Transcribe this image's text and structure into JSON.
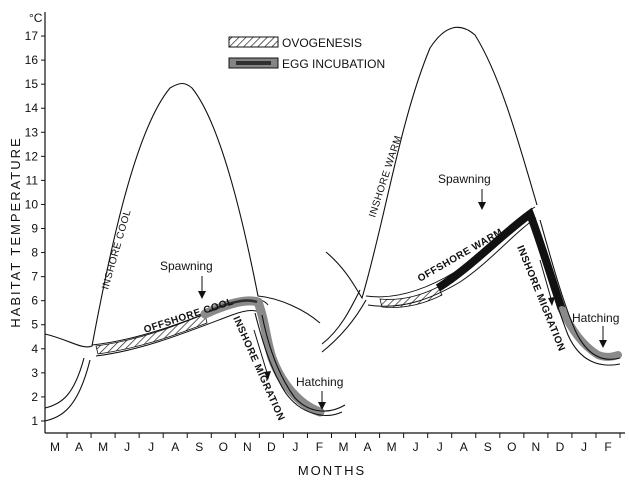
{
  "chart_data": {
    "type": "line",
    "title": "",
    "xlabel": "MONTHS",
    "ylabel": "HABITAT TEMPERATURE",
    "y_unit": "°C",
    "ylim": [
      0.5,
      18
    ],
    "y_ticks": [
      1,
      2,
      3,
      4,
      5,
      6,
      7,
      8,
      9,
      10,
      11,
      12,
      13,
      14,
      15,
      16,
      17
    ],
    "x_ticks": [
      "M",
      "A",
      "M",
      "J",
      "J",
      "A",
      "S",
      "O",
      "N",
      "D",
      "J",
      "F",
      "M",
      "A",
      "M",
      "J",
      "J",
      "A",
      "S",
      "O",
      "N",
      "D",
      "J",
      "F"
    ],
    "legend": [
      {
        "label": "OVOGENESIS",
        "style": "hatched"
      },
      {
        "label": "EGG INCUBATION",
        "style": "gray-filled"
      }
    ],
    "legend_position": "top-center",
    "series": [
      {
        "name": "INSHORE COOL",
        "x": [
          0,
          1,
          2,
          3,
          4,
          5,
          6,
          7,
          8
        ],
        "y": [
          4.6,
          4.0,
          7.5,
          12.5,
          14.9,
          14.2,
          11.0,
          6.5,
          6.0
        ]
      },
      {
        "name": "OFFSHORE COOL",
        "x": [
          1,
          2,
          3,
          4,
          5,
          6,
          7,
          8,
          9,
          10
        ],
        "y": [
          3.8,
          3.9,
          4.2,
          4.7,
          5.3,
          5.8,
          6.0,
          5.8,
          5.4,
          4.8
        ]
      },
      {
        "name": "INSHORE MIGRATION",
        "x": [
          8.0,
          8.5,
          9.0,
          9.5,
          10.0,
          10.5,
          11.0
        ],
        "y": [
          5.9,
          3.8,
          2.3,
          1.6,
          1.2,
          1.2,
          1.5
        ]
      },
      {
        "name": "INSHORE WARM",
        "x": [
          11.2,
          13,
          14,
          15,
          16,
          17,
          18,
          19,
          20
        ],
        "y": [
          4.0,
          6.5,
          12.5,
          16.2,
          17.4,
          16.8,
          14.5,
          11.5,
          9.6
        ]
      },
      {
        "name": "OFFSHORE WARM",
        "x": [
          12,
          13,
          14,
          15,
          16,
          17,
          18,
          19,
          20
        ],
        "y": [
          7.2,
          6.0,
          5.8,
          6.2,
          6.8,
          7.6,
          8.5,
          9.3,
          9.7
        ]
      },
      {
        "name": "INSHORE MIGRATION",
        "x": [
          20.0,
          20.5,
          21.0,
          21.5,
          22.0,
          22.5,
          23.0
        ],
        "y": [
          9.8,
          7.5,
          5.2,
          4.0,
          3.6,
          3.4,
          3.5
        ]
      }
    ],
    "annotations": [
      {
        "text": "Spawning",
        "x": 6.0,
        "y": 7.3
      },
      {
        "text": "Hatching",
        "x": 10.6,
        "y": 3.4
      },
      {
        "text": "Spawning",
        "x": 18.0,
        "y": 11.4
      },
      {
        "text": "Hatching",
        "x": 22.8,
        "y": 5.6
      }
    ],
    "grid": false
  }
}
